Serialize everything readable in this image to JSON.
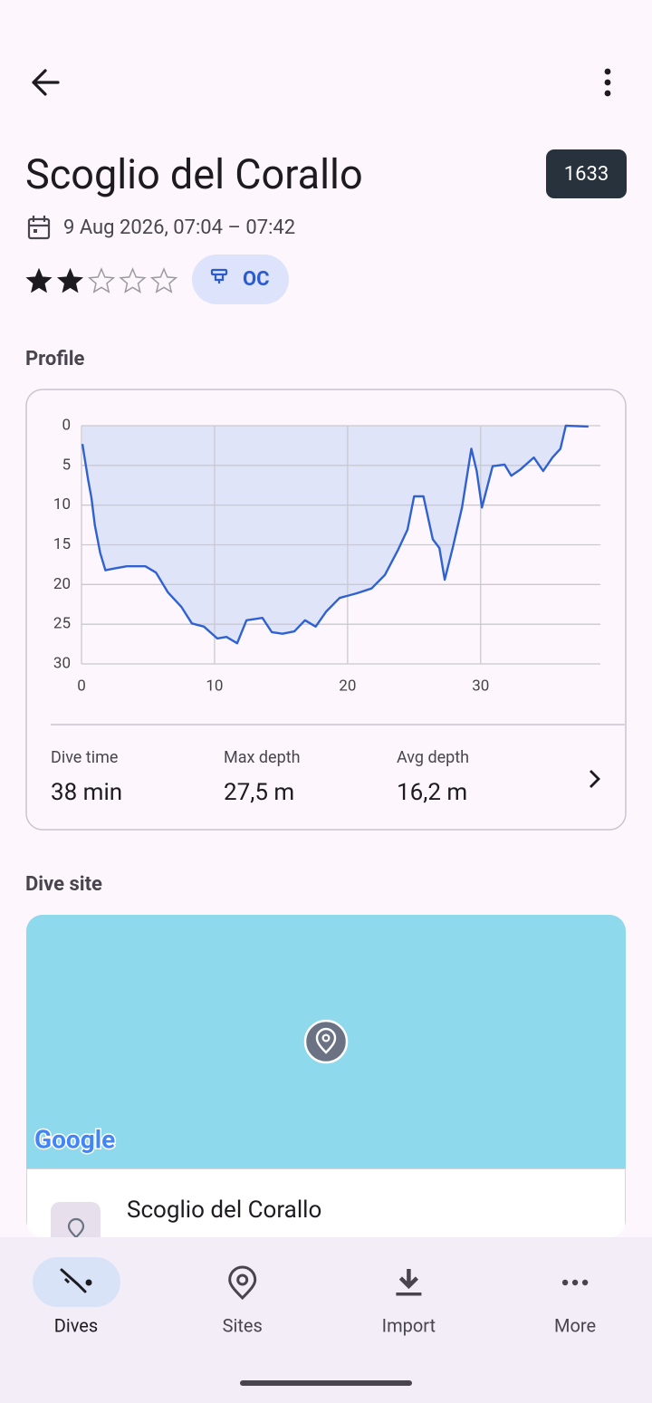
{
  "title": "Scoglio del Corallo",
  "dive_number": "1633",
  "datetime": "9 Aug 2026, 07:04 – 07:42",
  "rating": {
    "value": 2,
    "max": 5
  },
  "tag": "OC",
  "profile_heading": "Profile",
  "chart_data": {
    "type": "line",
    "x": [
      0.07,
      0.5,
      0.75,
      1.0,
      1.4,
      1.8,
      2.4,
      3.4,
      4.8,
      5.6,
      6.5,
      7.5,
      8.3,
      9.2,
      10.2,
      10.9,
      11.7,
      12.4,
      13.6,
      14.3,
      15.1,
      16.0,
      16.8,
      17.6,
      18.4,
      19.4,
      20.7,
      21.8,
      22.8,
      23.8,
      24.5,
      25.0,
      25.7,
      26.4,
      26.9,
      27.3,
      27.9,
      28.6,
      29.3,
      29.7,
      30.1,
      30.9,
      31.8,
      32.3,
      33.0,
      34.0,
      34.7,
      35.4,
      36.0,
      36.4,
      38.1
    ],
    "series": [
      {
        "color": "#2f62d0",
        "values": [
          2.3,
          6.8,
          9.1,
          12.5,
          16,
          18.2,
          18,
          17.7,
          17.7,
          18.5,
          21,
          22.8,
          24.9,
          25.3,
          26.8,
          26.6,
          27.4,
          24.5,
          24.2,
          26,
          26.2,
          25.9,
          24.5,
          25.3,
          23.4,
          21.7,
          21.1,
          20.5,
          18.8,
          15.6,
          13.1,
          8.9,
          8.9,
          14.3,
          15.4,
          19.4,
          15.4,
          10.3,
          2.9,
          5.7,
          10.3,
          5.1,
          4.9,
          6.3,
          5.5,
          4,
          5.7,
          4,
          2.9,
          0,
          0.1
        ]
      }
    ],
    "area_color": "#e0e4f8",
    "xlim": [
      0,
      39
    ],
    "xticks": [
      0,
      10,
      20,
      30
    ],
    "ylim": [
      0,
      30
    ],
    "yticks": [
      0,
      5,
      10,
      15,
      20,
      25,
      30
    ],
    "y_inverted": true,
    "grid": true
  },
  "stats": [
    {
      "label": "Dive time",
      "value": "38 min"
    },
    {
      "label": "Max depth",
      "value": "27,5 m"
    },
    {
      "label": "Avg depth",
      "value": "16,2 m"
    }
  ],
  "site_heading": "Dive site",
  "map_logo": "Google",
  "site_name": "Scoglio del Corallo",
  "nav": [
    {
      "label": "Dives",
      "active": true
    },
    {
      "label": "Sites",
      "active": false
    },
    {
      "label": "Import",
      "active": false
    },
    {
      "label": "More",
      "active": false
    }
  ]
}
